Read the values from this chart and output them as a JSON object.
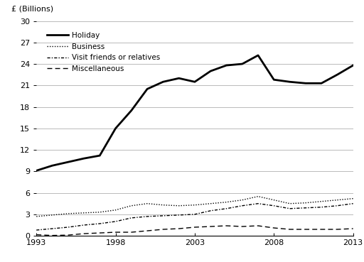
{
  "years": [
    1993,
    1994,
    1995,
    1996,
    1997,
    1998,
    1999,
    2000,
    2001,
    2002,
    2003,
    2004,
    2005,
    2006,
    2007,
    2008,
    2009,
    2010,
    2011,
    2012,
    2013
  ],
  "holiday": [
    9.1,
    9.8,
    10.3,
    10.8,
    11.2,
    15.0,
    17.5,
    20.5,
    21.5,
    22.0,
    21.5,
    23.0,
    23.8,
    24.0,
    25.2,
    21.8,
    21.5,
    21.3,
    21.3,
    22.5,
    23.8
  ],
  "business": [
    2.7,
    2.9,
    3.1,
    3.2,
    3.3,
    3.6,
    4.2,
    4.5,
    4.3,
    4.2,
    4.3,
    4.5,
    4.7,
    5.0,
    5.5,
    5.0,
    4.5,
    4.6,
    4.8,
    5.0,
    5.2
  ],
  "visit_friends": [
    0.8,
    1.0,
    1.2,
    1.5,
    1.7,
    2.0,
    2.5,
    2.7,
    2.8,
    2.9,
    3.0,
    3.5,
    3.8,
    4.2,
    4.5,
    4.2,
    3.8,
    3.9,
    4.0,
    4.2,
    4.5
  ],
  "miscellaneous": [
    0.15,
    0.05,
    0.1,
    0.3,
    0.4,
    0.5,
    0.5,
    0.7,
    0.9,
    1.0,
    1.2,
    1.3,
    1.4,
    1.3,
    1.4,
    1.1,
    0.9,
    0.9,
    0.9,
    0.9,
    1.0
  ],
  "ylabel": "£ (Billions)",
  "ylim": [
    0,
    30
  ],
  "yticks": [
    0,
    3,
    6,
    9,
    12,
    15,
    18,
    21,
    24,
    27,
    30
  ],
  "xticks": [
    1993,
    1998,
    2003,
    2008,
    2013
  ],
  "background_color": "#ffffff",
  "grid_color": "#b0b0b0",
  "legend_labels": [
    "Holiday",
    "Business",
    "Visit friends or relatives",
    "Miscellaneous"
  ]
}
